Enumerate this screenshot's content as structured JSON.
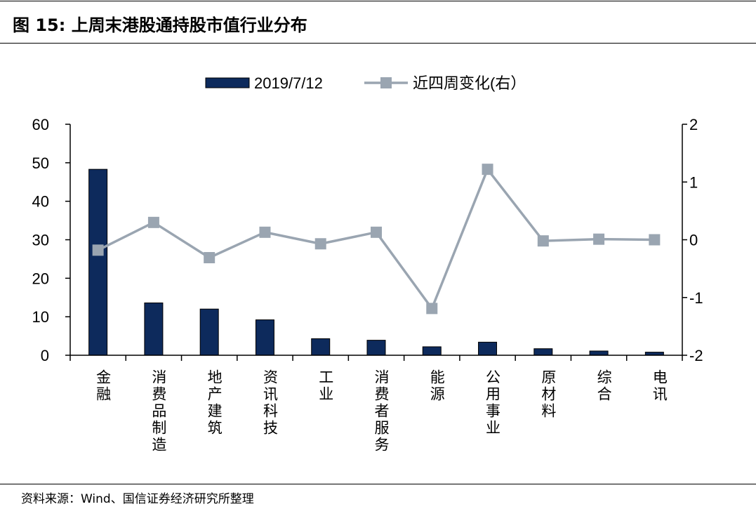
{
  "header": {
    "title": "图 15:  上周末港股通持股市值行业分布"
  },
  "footer": {
    "source": "资料来源：Wind、国信证券经济研究所整理"
  },
  "colors": {
    "bar": "#0d2a5c",
    "line": "#9aa5b1",
    "axis": "#000000"
  },
  "chart_data": {
    "type": "bar",
    "categories": [
      "金融",
      "消费品制造",
      "地产建筑",
      "资讯科技",
      "工业",
      "消费者服务",
      "能源",
      "公用事业",
      "原材料",
      "综合",
      "电讯"
    ],
    "series": [
      {
        "name": "2019/7/12",
        "type": "bar",
        "axis": "left",
        "values": [
          48.3,
          13.6,
          12.0,
          9.2,
          4.3,
          3.9,
          2.2,
          3.4,
          1.7,
          1.1,
          0.8
        ]
      },
      {
        "name": "近四周变化(右）",
        "type": "line",
        "axis": "right",
        "values": [
          -0.18,
          0.3,
          -0.31,
          0.13,
          -0.07,
          0.13,
          -1.19,
          1.22,
          -0.02,
          0.01,
          0.0
        ]
      }
    ],
    "y_left": {
      "min": 0,
      "max": 60,
      "ticks": [
        0,
        10,
        20,
        30,
        40,
        50,
        60
      ]
    },
    "y_right": {
      "min": -2,
      "max": 2,
      "ticks": [
        -2,
        -1,
        0,
        1,
        2
      ]
    },
    "legend_position": "top",
    "grid": false
  }
}
